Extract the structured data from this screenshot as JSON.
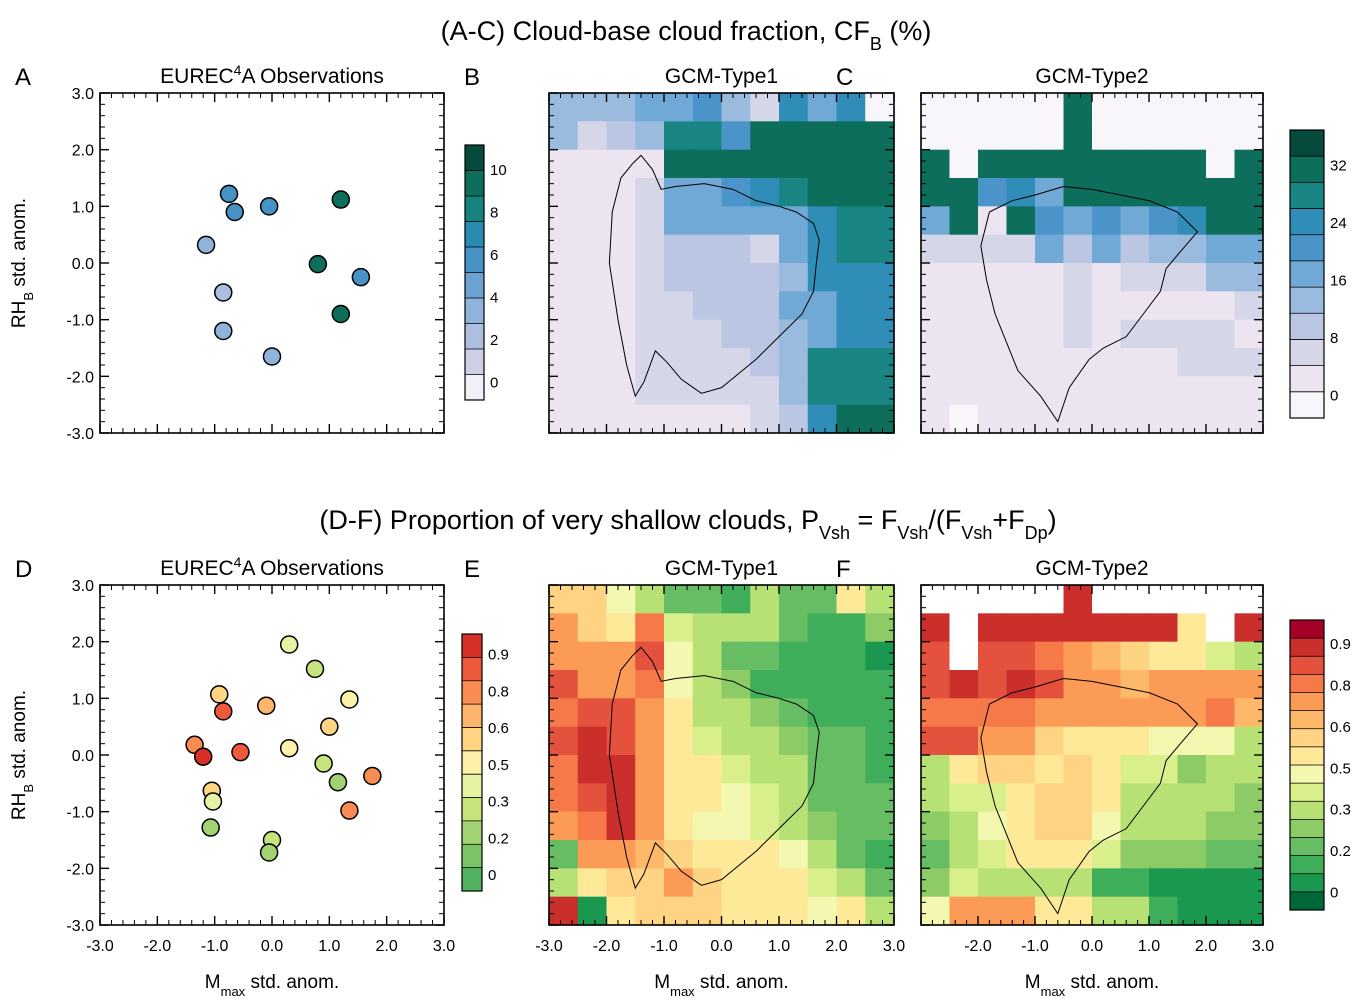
{
  "figure": {
    "title_top": {
      "main": "(A-C) Cloud-base cloud fraction, CF",
      "sub": "B",
      "tail": " (%)"
    },
    "title_bottom": {
      "main": "(D-F) Proportion of very shallow clouds, P",
      "p_sub": "Vsh",
      "eq": " = F",
      "f1_sub": "Vsh",
      "mid": "/(F",
      "f2_sub": "Vsh",
      "plus": "+F",
      "f3_sub": "Dp",
      "close": ")"
    },
    "ylabel": {
      "pre": "RH",
      "sub": "B",
      "post": " std. anom."
    },
    "xlabel": {
      "pre": "M",
      "sub": "max",
      "post": "  std. anom."
    }
  },
  "panels": [
    {
      "letter": "A",
      "title_pre": "EUREC",
      "title_sup": "4",
      "title_post": "A Observations"
    },
    {
      "letter": "B",
      "title": "GCM-Type1"
    },
    {
      "letter": "C",
      "title": "GCM-Type2"
    },
    {
      "letter": "D",
      "title_pre": "EUREC",
      "title_sup": "4",
      "title_post": "A Observations"
    },
    {
      "letter": "E",
      "title": "GCM-Type1"
    },
    {
      "letter": "F",
      "title": "GCM-Type2"
    }
  ],
  "chart_data": [
    {
      "panel": "A",
      "type": "scatter",
      "xlim": [
        -3,
        3
      ],
      "ylim": [
        -3,
        3
      ],
      "yticklabels": [
        "3.0",
        "2.0",
        "1.0",
        "0.0",
        "-1.0",
        "-2.0",
        "-3.0"
      ],
      "points": [
        {
          "x": -0.75,
          "y": 1.22,
          "v": 5
        },
        {
          "x": -0.65,
          "y": 0.9,
          "v": 5
        },
        {
          "x": -0.05,
          "y": 1.0,
          "v": 5
        },
        {
          "x": 1.2,
          "y": 1.12,
          "v": 9
        },
        {
          "x": -1.15,
          "y": 0.32,
          "v": 3
        },
        {
          "x": 0.8,
          "y": -0.02,
          "v": 9
        },
        {
          "x": 1.55,
          "y": -0.25,
          "v": 5
        },
        {
          "x": -0.85,
          "y": -0.52,
          "v": 2
        },
        {
          "x": 1.2,
          "y": -0.9,
          "v": 9
        },
        {
          "x": -0.85,
          "y": -1.2,
          "v": 3
        },
        {
          "x": 0.0,
          "y": -1.65,
          "v": 3
        }
      ],
      "colorbar": {
        "labels": [
          "10",
          "8",
          "6",
          "4",
          "2",
          "0"
        ],
        "colors": [
          "#f1eff7",
          "#cdd0e5",
          "#aebee0",
          "#8fb3da",
          "#6aa2d2",
          "#4692c5",
          "#2a8cb2",
          "#17837f",
          "#0d6e5b",
          "#06493d"
        ]
      }
    },
    {
      "panel": "B",
      "type": "heatmap",
      "xlim": [
        -3,
        3
      ],
      "ylim": [
        -3,
        3
      ],
      "rows": 12,
      "cols": 12,
      "grid": [
        [
          4,
          4,
          4,
          5,
          5,
          6,
          4,
          2,
          7,
          5,
          7,
          0
        ],
        [
          4,
          2,
          3,
          4,
          8,
          8,
          6,
          9,
          9,
          9,
          9,
          9
        ],
        [
          1,
          1,
          1,
          1,
          9,
          9,
          9,
          9,
          9,
          9,
          9,
          9
        ],
        [
          1,
          1,
          1,
          2,
          5,
          5,
          6,
          7,
          8,
          9,
          9,
          9
        ],
        [
          1,
          1,
          1,
          2,
          5,
          5,
          5,
          5,
          5,
          7,
          8,
          8
        ],
        [
          1,
          1,
          1,
          2,
          3,
          3,
          3,
          2,
          5,
          7,
          8,
          8
        ],
        [
          1,
          1,
          1,
          2,
          3,
          3,
          3,
          3,
          4,
          7,
          7,
          7
        ],
        [
          1,
          1,
          1,
          2,
          2,
          3,
          3,
          3,
          5,
          5,
          7,
          7
        ],
        [
          1,
          1,
          1,
          2,
          2,
          2,
          3,
          3,
          4,
          5,
          7,
          7
        ],
        [
          1,
          1,
          1,
          2,
          2,
          2,
          2,
          3,
          4,
          8,
          8,
          8
        ],
        [
          1,
          1,
          1,
          2,
          2,
          2,
          2,
          2,
          4,
          8,
          8,
          8
        ],
        [
          1,
          1,
          1,
          1,
          1,
          1,
          1,
          2,
          3,
          7,
          9,
          9
        ]
      ],
      "colorbar": {
        "labels": [
          "32",
          "24",
          "16",
          "8",
          "0"
        ],
        "colors": [
          "#f8f5fb",
          "#ece4f1",
          "#d6d6e9",
          "#bac6e2",
          "#9abbdd",
          "#70a9d6",
          "#4b94c9",
          "#2f8db7",
          "#198683",
          "#0d6e5b",
          "#06493d"
        ]
      }
    },
    {
      "panel": "C",
      "type": "heatmap",
      "xlim": [
        -3,
        3
      ],
      "ylim": [
        -3,
        3
      ],
      "rows": 12,
      "cols": 12,
      "grid": [
        [
          0,
          0,
          0,
          0,
          0,
          9,
          0,
          0,
          0,
          0,
          0,
          0
        ],
        [
          0,
          0,
          0,
          0,
          0,
          9,
          0,
          0,
          0,
          0,
          0,
          0
        ],
        [
          9,
          0,
          9,
          9,
          9,
          9,
          9,
          9,
          9,
          9,
          0,
          9
        ],
        [
          9,
          9,
          6,
          7,
          5,
          9,
          9,
          9,
          9,
          9,
          9,
          9
        ],
        [
          5,
          9,
          1,
          9,
          6,
          5,
          6,
          5,
          6,
          7,
          9,
          9
        ],
        [
          2,
          2,
          2,
          2,
          5,
          3,
          5,
          3,
          4,
          4,
          5,
          5
        ],
        [
          1,
          1,
          1,
          1,
          1,
          2,
          1,
          2,
          2,
          2,
          4,
          4
        ],
        [
          1,
          1,
          1,
          1,
          1,
          2,
          1,
          1,
          1,
          1,
          1,
          2
        ],
        [
          1,
          1,
          1,
          1,
          1,
          2,
          1,
          2,
          2,
          2,
          2,
          1
        ],
        [
          1,
          1,
          1,
          1,
          1,
          1,
          1,
          1,
          1,
          2,
          2,
          2
        ],
        [
          1,
          1,
          1,
          1,
          1,
          1,
          1,
          1,
          1,
          1,
          1,
          1
        ],
        [
          1,
          0,
          1,
          1,
          1,
          1,
          1,
          1,
          1,
          1,
          1,
          1
        ]
      ],
      "colorbar": {
        "labels": [
          "32",
          "24",
          "16",
          "8",
          "0"
        ]
      }
    },
    {
      "panel": "D",
      "type": "scatter",
      "xlim": [
        -3,
        3
      ],
      "ylim": [
        -3,
        3
      ],
      "xticklabels": [
        "-3.0",
        "-2.0",
        "-1.0",
        "0.0",
        "1.0",
        "2.0",
        "3.0"
      ],
      "yticklabels": [
        "3.0",
        "2.0",
        "1.0",
        "0.0",
        "-1.0",
        "-2.0",
        "-3.0"
      ],
      "points": [
        {
          "x": 0.3,
          "y": 1.95,
          "v": 0.38
        },
        {
          "x": 0.75,
          "y": 1.52,
          "v": 0.32
        },
        {
          "x": -0.92,
          "y": 1.07,
          "v": 0.6
        },
        {
          "x": 1.35,
          "y": 0.98,
          "v": 0.48
        },
        {
          "x": -0.1,
          "y": 0.87,
          "v": 0.72
        },
        {
          "x": -0.85,
          "y": 0.77,
          "v": 0.92
        },
        {
          "x": 1.0,
          "y": 0.5,
          "v": 0.55
        },
        {
          "x": -1.35,
          "y": 0.18,
          "v": 0.75
        },
        {
          "x": -0.55,
          "y": 0.05,
          "v": 0.85
        },
        {
          "x": 0.3,
          "y": 0.12,
          "v": 0.5
        },
        {
          "x": -1.2,
          "y": -0.03,
          "v": 0.95
        },
        {
          "x": 0.9,
          "y": -0.15,
          "v": 0.25
        },
        {
          "x": 1.75,
          "y": -0.37,
          "v": 0.78
        },
        {
          "x": 1.15,
          "y": -0.48,
          "v": 0.22
        },
        {
          "x": -1.05,
          "y": -0.63,
          "v": 0.58
        },
        {
          "x": -1.03,
          "y": -0.82,
          "v": 0.35
        },
        {
          "x": 1.35,
          "y": -0.98,
          "v": 0.75
        },
        {
          "x": -1.07,
          "y": -1.28,
          "v": 0.22
        },
        {
          "x": 0.0,
          "y": -1.5,
          "v": 0.25
        },
        {
          "x": -0.05,
          "y": -1.72,
          "v": 0.2
        }
      ],
      "colorbar": {
        "labels": [
          "0.9",
          "0.8",
          "0.6",
          "0.5",
          "0.3",
          "0.2",
          "0"
        ],
        "colors": [
          "#52b15c",
          "#7ac366",
          "#a1d372",
          "#c6e47d",
          "#e6f3a3",
          "#fdf0a9",
          "#fed683",
          "#fdb46b",
          "#f88c52",
          "#ec5a3a",
          "#d73027"
        ]
      }
    },
    {
      "panel": "E",
      "type": "heatmap",
      "xlim": [
        -3,
        3
      ],
      "ylim": [
        -3,
        3
      ],
      "rows": 12,
      "cols": 12,
      "xticklabels": [
        "-3.0",
        "-2.0",
        "-1.0",
        "0.0",
        "1.0",
        "2.0",
        "3.0"
      ],
      "grid": [
        [
          0.6,
          0.58,
          0.45,
          0.35,
          0.2,
          0.2,
          0.1,
          0.35,
          0.2,
          0.2,
          0.55,
          0.3
        ],
        [
          0.7,
          0.6,
          0.55,
          0.8,
          0.4,
          0.3,
          0.35,
          0.3,
          0.2,
          0.15,
          0.15,
          0.25
        ],
        [
          0.75,
          0.7,
          0.7,
          0.85,
          0.45,
          0.3,
          0.2,
          0.2,
          0.15,
          0.1,
          0.1,
          0.05
        ],
        [
          0.85,
          0.75,
          0.75,
          0.8,
          0.45,
          0.3,
          0.25,
          0.15,
          0.15,
          0.1,
          0.1,
          0.1
        ],
        [
          0.8,
          0.85,
          0.85,
          0.75,
          0.5,
          0.35,
          0.3,
          0.25,
          0.2,
          0.15,
          0.1,
          0.1
        ],
        [
          0.85,
          0.9,
          0.85,
          0.75,
          0.5,
          0.4,
          0.3,
          0.3,
          0.25,
          0.2,
          0.2,
          0.15
        ],
        [
          0.8,
          0.9,
          0.9,
          0.75,
          0.5,
          0.5,
          0.4,
          0.35,
          0.3,
          0.2,
          0.2,
          0.15
        ],
        [
          0.8,
          0.85,
          0.9,
          0.75,
          0.55,
          0.5,
          0.45,
          0.4,
          0.3,
          0.2,
          0.2,
          0.2
        ],
        [
          0.7,
          0.8,
          0.95,
          0.7,
          0.55,
          0.45,
          0.45,
          0.4,
          0.35,
          0.25,
          0.2,
          0.2
        ],
        [
          0.2,
          0.7,
          0.7,
          0.65,
          0.6,
          0.55,
          0.5,
          0.5,
          0.45,
          0.35,
          0.2,
          0.15
        ],
        [
          0.3,
          0.55,
          0.6,
          0.6,
          0.7,
          0.6,
          0.55,
          0.55,
          0.5,
          0.4,
          0.3,
          0.2
        ],
        [
          0.95,
          0.05,
          0.55,
          0.6,
          0.6,
          0.6,
          0.55,
          0.55,
          0.5,
          0.45,
          0.5,
          0.3
        ]
      ],
      "colorbar": {
        "labels": [
          "0.9",
          "0.8",
          "0.6",
          "0.5",
          "0.3",
          "0.2",
          "0"
        ],
        "colors": [
          "#006837",
          "#1a9850",
          "#3fae5a",
          "#66bd63",
          "#8ccb66",
          "#b7e075",
          "#d9ef8b",
          "#f4f7b0",
          "#fee999",
          "#fed384",
          "#fdb86a",
          "#fc9b56",
          "#f67a49",
          "#e4513d",
          "#cb2f2c",
          "#a50026"
        ]
      }
    },
    {
      "panel": "F",
      "type": "heatmap",
      "xlim": [
        -3,
        3
      ],
      "ylim": [
        -3,
        3
      ],
      "rows": 12,
      "cols": 12,
      "xticklabels": [
        "-2.0",
        "-1.0",
        "0.0",
        "1.0",
        "2.0",
        "3.0"
      ],
      "grid": [
        [
          -1,
          -1,
          -1,
          -1,
          -1,
          0.95,
          -1,
          -1,
          -1,
          -1,
          -1,
          -1
        ],
        [
          0.9,
          -1,
          0.9,
          0.9,
          0.9,
          0.9,
          0.95,
          0.95,
          0.95,
          0.55,
          -1,
          0.95
        ],
        [
          0.85,
          -1,
          0.85,
          0.85,
          0.8,
          0.75,
          0.65,
          0.6,
          0.55,
          0.5,
          0.4,
          0.3
        ],
        [
          0.85,
          0.9,
          0.85,
          0.9,
          0.85,
          0.75,
          0.7,
          0.65,
          0.7,
          0.75,
          0.75,
          0.7
        ],
        [
          0.8,
          0.8,
          0.8,
          0.8,
          0.75,
          0.75,
          0.7,
          0.7,
          0.7,
          0.75,
          0.8,
          0.65
        ],
        [
          0.85,
          0.85,
          0.7,
          0.7,
          0.6,
          0.5,
          0.55,
          0.5,
          0.45,
          0.45,
          0.45,
          0.3
        ],
        [
          0.35,
          0.55,
          0.6,
          0.6,
          0.5,
          0.6,
          0.55,
          0.4,
          0.4,
          0.25,
          0.3,
          0.3
        ],
        [
          0.3,
          0.4,
          0.4,
          0.5,
          0.6,
          0.6,
          0.5,
          0.35,
          0.3,
          0.3,
          0.3,
          0.25
        ],
        [
          0.25,
          0.35,
          0.45,
          0.5,
          0.6,
          0.6,
          0.45,
          0.35,
          0.3,
          0.3,
          0.25,
          0.25
        ],
        [
          0.2,
          0.35,
          0.4,
          0.5,
          0.55,
          0.55,
          0.4,
          0.25,
          0.25,
          0.25,
          0.2,
          0.2
        ],
        [
          0.25,
          0.4,
          0.3,
          0.3,
          0.35,
          0.3,
          0.1,
          0.15,
          0.05,
          0.05,
          0.05,
          0.05
        ],
        [
          0.45,
          0.75,
          0.7,
          0.7,
          0.5,
          0.5,
          0.35,
          0.3,
          0.1,
          0.05,
          0.05,
          0.05
        ]
      ],
      "colorbar": {
        "labels": [
          "0.9",
          "0.8",
          "0.6",
          "0.5",
          "0.3",
          "0.2",
          "0"
        ]
      }
    }
  ]
}
